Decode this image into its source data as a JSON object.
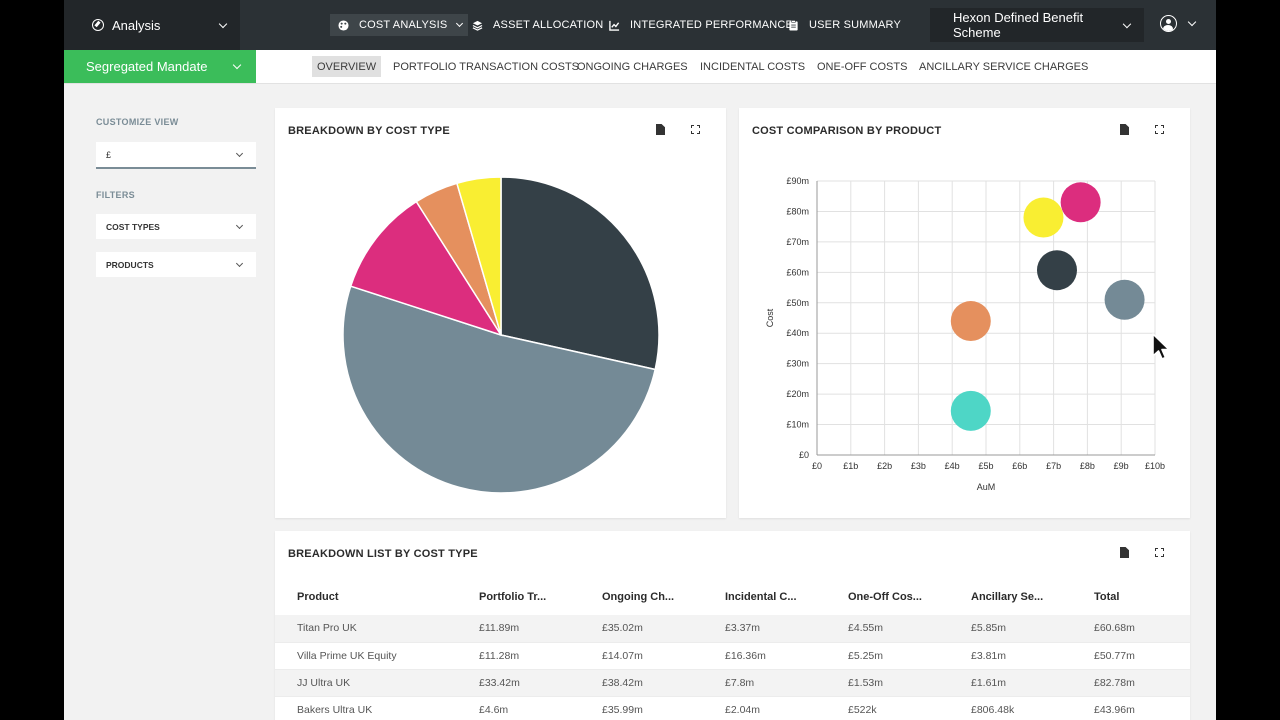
{
  "app": {
    "switcher_label": "Analysis",
    "nav_tabs": [
      {
        "label": "COST ANALYSIS",
        "icon": "palette-icon"
      },
      {
        "label": "ASSET ALLOCATION",
        "icon": "layers-icon"
      },
      {
        "label": "INTEGRATED PERFORMANCE",
        "icon": "line-chart-icon"
      },
      {
        "label": "USER SUMMARY",
        "icon": "clipboard-icon"
      }
    ],
    "scheme": "Hexon Defined Benefit Scheme"
  },
  "subbar": {
    "mandate": "Segregated Mandate",
    "tabs": [
      "OVERVIEW",
      "PORTFOLIO TRANSACTION COSTS",
      "ONGOING CHARGES",
      "INCIDENTAL COSTS",
      "ONE-OFF COSTS",
      "ANCILLARY SERVICE CHARGES"
    ]
  },
  "sidebar": {
    "customize_label": "CUSTOMIZE VIEW",
    "currency": "£",
    "filters_label": "FILTERS",
    "filter_cost_types": "COST TYPES",
    "filter_products": "PRODUCTS"
  },
  "panels": {
    "pie_title": "BREAKDOWN BY COST TYPE",
    "bubble_title": "COST COMPARISON BY PRODUCT",
    "list_title": "BREAKDOWN LIST BY COST TYPE"
  },
  "colors": {
    "dark": "#344047",
    "slate": "#748a96",
    "magenta": "#dc2d7e",
    "orange": "#e5905e",
    "yellow": "#f9ee32",
    "teal": "#4ed6c6",
    "green": "#3bbd5a"
  },
  "chart_data": [
    {
      "type": "pie",
      "title": "BREAKDOWN BY COST TYPE",
      "slices": [
        {
          "name": "Portfolio Transaction Costs",
          "value": 28.5,
          "color": "#344047"
        },
        {
          "name": "Ongoing Charges",
          "value": 51.5,
          "color": "#748a96"
        },
        {
          "name": "Incidental Costs",
          "value": 11.0,
          "color": "#dc2d7e"
        },
        {
          "name": "One-Off Costs",
          "value": 4.5,
          "color": "#e5905e"
        },
        {
          "name": "Ancillary Service Charges",
          "value": 4.5,
          "color": "#f9ee32"
        }
      ]
    },
    {
      "type": "scatter",
      "title": "COST COMPARISON BY PRODUCT",
      "xlabel": "AuM",
      "ylabel": "Cost",
      "xlim": [
        0,
        10
      ],
      "ylim": [
        0,
        90
      ],
      "x_ticks": [
        "£0",
        "£1b",
        "£2b",
        "£3b",
        "£4b",
        "£5b",
        "£6b",
        "£7b",
        "£8b",
        "£9b",
        "£10b"
      ],
      "y_ticks": [
        "£0",
        "£10m",
        "£20m",
        "£30m",
        "£40m",
        "£50m",
        "£60m",
        "£70m",
        "£80m",
        "£90m"
      ],
      "points": [
        {
          "x": 4.55,
          "y": 14.5,
          "color": "#4ed6c6"
        },
        {
          "x": 4.55,
          "y": 44.0,
          "color": "#e5905e"
        },
        {
          "x": 7.1,
          "y": 60.7,
          "color": "#344047"
        },
        {
          "x": 6.7,
          "y": 78.0,
          "color": "#f9ee32"
        },
        {
          "x": 7.8,
          "y": 83.0,
          "color": "#dc2d7e"
        },
        {
          "x": 9.1,
          "y": 51.0,
          "color": "#748a96"
        }
      ]
    }
  ],
  "table": {
    "headers": [
      "Product",
      "Portfolio Tr...",
      "Ongoing Ch...",
      "Incidental C...",
      "One-Off Cos...",
      "Ancillary Se...",
      "Total"
    ],
    "rows": [
      [
        "Titan Pro UK",
        "£11.89m",
        "£35.02m",
        "£3.37m",
        "£4.55m",
        "£5.85m",
        "£60.68m"
      ],
      [
        "Villa Prime UK Equity",
        "£11.28m",
        "£14.07m",
        "£16.36m",
        "£5.25m",
        "£3.81m",
        "£50.77m"
      ],
      [
        "JJ Ultra UK",
        "£33.42m",
        "£38.42m",
        "£7.8m",
        "£1.53m",
        "£1.61m",
        "£82.78m"
      ],
      [
        "Bakers Ultra UK",
        "£4.6m",
        "£35.99m",
        "£2.04m",
        "£522k",
        "£806.48k",
        "£43.96m"
      ]
    ]
  }
}
